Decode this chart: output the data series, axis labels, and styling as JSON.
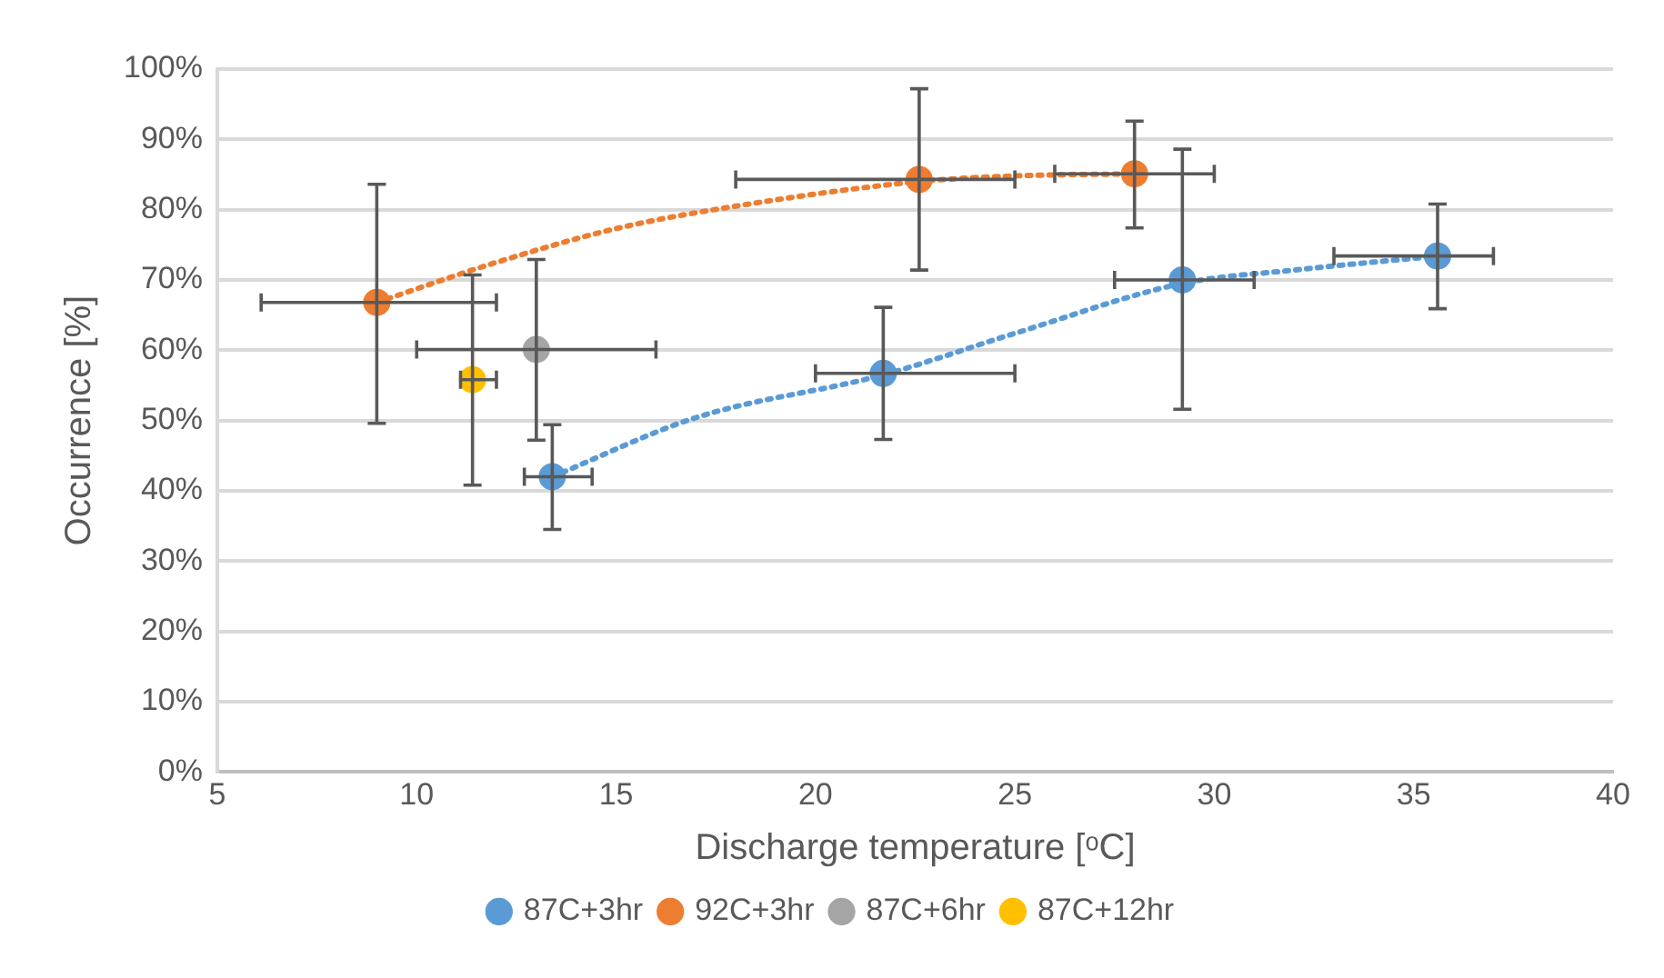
{
  "chart_data": {
    "type": "scatter",
    "xlabel": "Discharge temperature [ᵒC]",
    "ylabel": "Occurrence [%]",
    "xlim": [
      5,
      40
    ],
    "xticks": [
      5,
      10,
      15,
      20,
      25,
      30,
      35,
      40
    ],
    "ylim": [
      0,
      100
    ],
    "yticks": [
      {
        "value": 0,
        "label": "0%"
      },
      {
        "value": 10,
        "label": "10%"
      },
      {
        "value": 20,
        "label": "20%"
      },
      {
        "value": 30,
        "label": "30%"
      },
      {
        "value": 40,
        "label": "40%"
      },
      {
        "value": 50,
        "label": "50%"
      },
      {
        "value": 60,
        "label": "60%"
      },
      {
        "value": 70,
        "label": "70%"
      },
      {
        "value": 80,
        "label": "80%"
      },
      {
        "value": 90,
        "label": "90%"
      },
      {
        "value": 100,
        "label": "100%"
      }
    ],
    "grid": "y",
    "legend": "bottom",
    "marker": "circle",
    "series": [
      {
        "name": "87C+3hr",
        "color": "#5b9bd5",
        "x": [
          13.4,
          21.7,
          29.2,
          35.6
        ],
        "values": [
          42.0,
          56.7,
          70.0,
          73.4
        ],
        "errors": [
          [
            34.5,
            49.4
          ],
          [
            47.3,
            66.1
          ],
          [
            51.6,
            88.6
          ],
          [
            65.9,
            80.8
          ]
        ],
        "xerrors": [
          [
            12.7,
            14.4
          ],
          [
            20.0,
            25.0
          ],
          [
            27.5,
            31.0
          ],
          [
            33.0,
            37.0
          ]
        ]
      },
      {
        "name": "92C+3hr",
        "color": "#ed7d31",
        "x": [
          9.0,
          22.6,
          28.0
        ],
        "values": [
          66.8,
          84.3,
          85.1
        ],
        "errors": [
          [
            49.6,
            83.6
          ],
          [
            71.4,
            97.2
          ],
          [
            77.4,
            92.6
          ]
        ],
        "xerrors": [
          [
            6.1,
            12.0
          ],
          [
            18.0,
            25.0
          ],
          [
            26.0,
            30.0
          ]
        ]
      },
      {
        "name": "87C+6hr",
        "color": "#a5a5a5",
        "x": [
          13.0
        ],
        "values": [
          60.1
        ],
        "errors": [
          [
            47.2,
            72.9
          ]
        ],
        "xerrors": [
          [
            10.0,
            16.0
          ]
        ]
      },
      {
        "name": "87C+12hr",
        "color": "#ffc000",
        "x": [
          11.4
        ],
        "values": [
          55.8
        ],
        "errors": [
          [
            40.8,
            70.7
          ]
        ],
        "xerrors": [
          [
            11.1,
            12.0
          ]
        ]
      },
      {
        "type": "line",
        "color": "#5b9bd5",
        "line_style": "dotted",
        "marker": "none",
        "x": [
          13.4,
          17,
          21.7,
          25,
          29.2,
          32,
          35.6
        ],
        "values": [
          42.0,
          50.4,
          56.5,
          62.4,
          69.5,
          71.4,
          73.4
        ]
      },
      {
        "type": "line",
        "color": "#ed7d31",
        "line_style": "dotted",
        "marker": "none",
        "x": [
          9.0,
          12,
          15,
          18,
          22.6,
          25,
          28.0
        ],
        "values": [
          66.8,
          72.5,
          77.3,
          80.5,
          84.0,
          84.8,
          85.1
        ]
      }
    ]
  }
}
